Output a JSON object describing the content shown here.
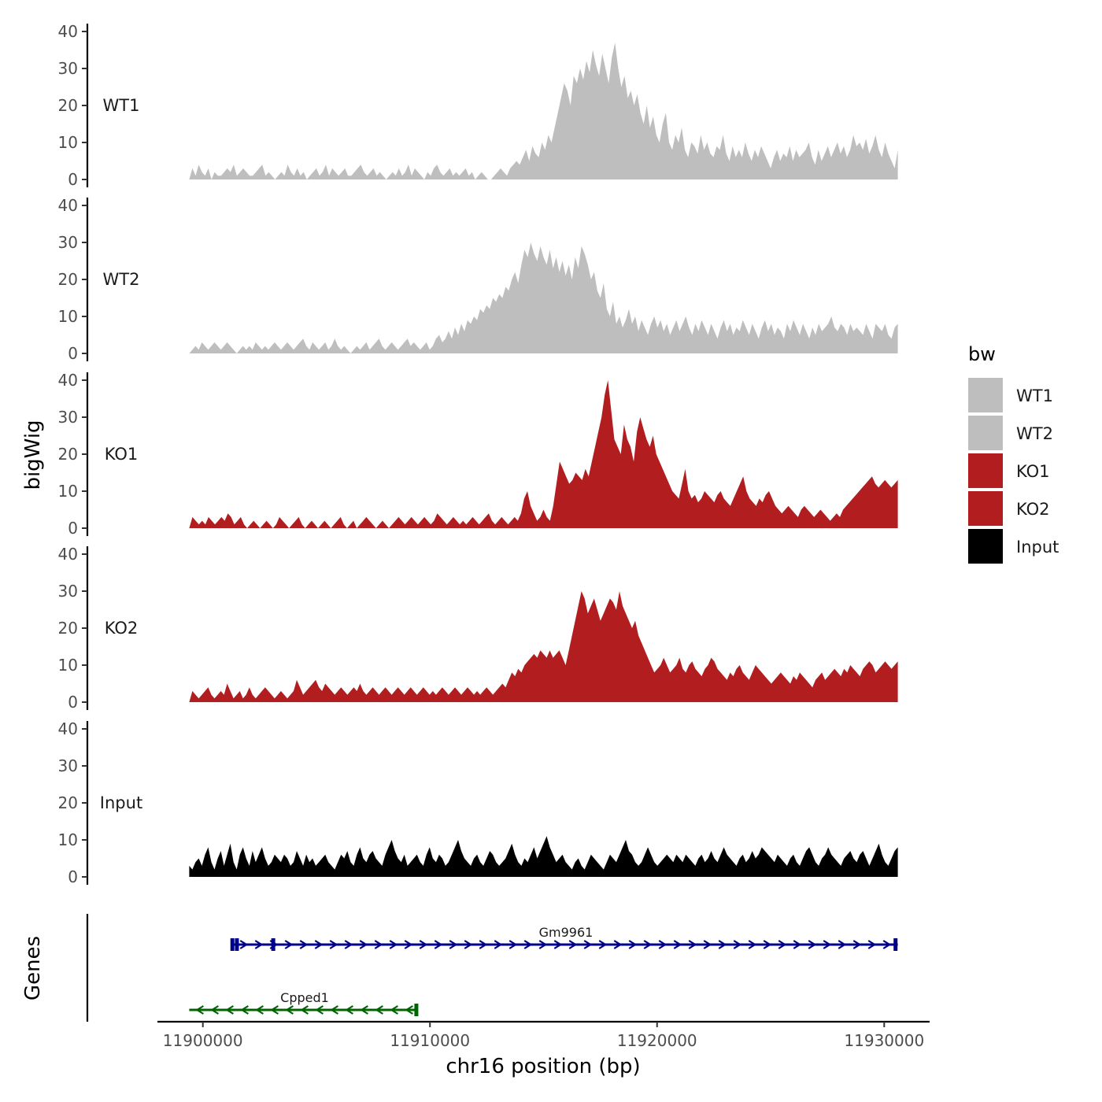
{
  "chart_data": {
    "type": "area",
    "ylabel": "bigWig",
    "xlabel": "chr16 position (bp)",
    "x_range": [
      11899400,
      11930600
    ],
    "xlim": [
      11898000,
      11932000
    ],
    "x_ticks": [
      11900000,
      11910000,
      11920000,
      11930000
    ],
    "x_tick_labels": [
      "11900000",
      "11910000",
      "11920000",
      "11930000"
    ],
    "y_range": [
      0,
      40
    ],
    "y_ticks": [
      0,
      10,
      20,
      30,
      40
    ],
    "y_tick_labels": [
      "0",
      "10",
      "20",
      "30",
      "40"
    ],
    "series": [
      {
        "name": "WT1",
        "color": "#bebebe",
        "values": [
          0,
          3,
          1,
          4,
          2,
          1,
          3,
          0,
          2,
          1,
          1,
          2,
          3,
          2,
          4,
          1,
          2,
          3,
          2,
          1,
          1,
          2,
          3,
          4,
          1,
          2,
          1,
          0,
          1,
          2,
          1,
          4,
          2,
          1,
          3,
          1,
          2,
          0,
          1,
          2,
          3,
          1,
          2,
          4,
          1,
          3,
          2,
          1,
          2,
          3,
          1,
          1,
          2,
          3,
          4,
          2,
          1,
          2,
          3,
          1,
          2,
          1,
          0,
          1,
          2,
          1,
          3,
          1,
          2,
          4,
          1,
          3,
          2,
          1,
          0,
          2,
          1,
          3,
          4,
          2,
          1,
          2,
          3,
          1,
          2,
          1,
          2,
          3,
          1,
          2,
          0,
          1,
          2,
          1,
          0,
          0,
          1,
          2,
          3,
          2,
          1,
          3,
          4,
          5,
          4,
          6,
          8,
          5,
          9,
          7,
          6,
          10,
          8,
          12,
          10,
          14,
          18,
          22,
          26,
          24,
          20,
          28,
          26,
          30,
          27,
          32,
          29,
          35,
          31,
          28,
          34,
          30,
          26,
          33,
          37,
          30,
          25,
          28,
          22,
          24,
          20,
          23,
          18,
          15,
          20,
          14,
          17,
          12,
          10,
          15,
          18,
          10,
          8,
          12,
          10,
          14,
          8,
          6,
          10,
          9,
          7,
          12,
          8,
          10,
          7,
          6,
          9,
          8,
          12,
          7,
          5,
          9,
          6,
          8,
          6,
          10,
          7,
          5,
          8,
          6,
          9,
          7,
          5,
          3,
          6,
          8,
          5,
          7,
          6,
          9,
          5,
          8,
          6,
          7,
          8,
          10,
          6,
          4,
          8,
          5,
          7,
          9,
          6,
          8,
          10,
          7,
          9,
          6,
          8,
          12,
          9,
          10,
          8,
          11,
          7,
          9,
          12,
          8,
          6,
          10,
          7,
          5,
          3,
          8
        ]
      },
      {
        "name": "WT2",
        "color": "#bebebe",
        "values": [
          0,
          1,
          2,
          1,
          3,
          2,
          1,
          2,
          3,
          2,
          1,
          2,
          3,
          2,
          1,
          0,
          1,
          2,
          1,
          2,
          1,
          3,
          2,
          1,
          2,
          1,
          2,
          3,
          2,
          1,
          2,
          3,
          2,
          1,
          2,
          3,
          4,
          2,
          1,
          3,
          2,
          1,
          2,
          3,
          1,
          2,
          4,
          2,
          1,
          2,
          1,
          0,
          1,
          2,
          1,
          2,
          3,
          1,
          2,
          3,
          4,
          2,
          1,
          2,
          3,
          2,
          1,
          2,
          3,
          4,
          2,
          3,
          2,
          1,
          2,
          3,
          1,
          2,
          4,
          5,
          3,
          4,
          6,
          4,
          7,
          5,
          8,
          6,
          9,
          8,
          10,
          9,
          12,
          11,
          13,
          12,
          15,
          14,
          16,
          15,
          18,
          17,
          20,
          22,
          19,
          24,
          28,
          26,
          30,
          27,
          25,
          29,
          26,
          24,
          28,
          23,
          26,
          22,
          25,
          21,
          24,
          20,
          26,
          23,
          29,
          27,
          24,
          20,
          22,
          17,
          15,
          19,
          12,
          10,
          14,
          8,
          10,
          7,
          9,
          12,
          8,
          10,
          6,
          9,
          7,
          5,
          8,
          10,
          7,
          9,
          6,
          8,
          5,
          7,
          9,
          6,
          8,
          10,
          7,
          5,
          8,
          6,
          9,
          7,
          5,
          8,
          6,
          4,
          7,
          9,
          6,
          8,
          5,
          7,
          6,
          9,
          7,
          5,
          8,
          6,
          4,
          7,
          9,
          6,
          8,
          5,
          7,
          6,
          4,
          8,
          6,
          9,
          7,
          5,
          8,
          6,
          4,
          7,
          5,
          8,
          6,
          7,
          8,
          10,
          7,
          6,
          8,
          7,
          5,
          8,
          6,
          7,
          6,
          5,
          8,
          6,
          4,
          8,
          7,
          6,
          8,
          5,
          4,
          7,
          8
        ]
      },
      {
        "name": "KO1",
        "color": "#b21e20",
        "values": [
          0,
          3,
          2,
          1,
          2,
          1,
          3,
          2,
          1,
          2,
          3,
          2,
          4,
          3,
          1,
          2,
          3,
          1,
          0,
          1,
          2,
          1,
          0,
          1,
          2,
          1,
          0,
          1,
          3,
          2,
          1,
          0,
          1,
          2,
          3,
          1,
          0,
          1,
          2,
          1,
          0,
          1,
          2,
          1,
          0,
          1,
          2,
          3,
          1,
          0,
          1,
          2,
          0,
          1,
          2,
          3,
          2,
          1,
          0,
          1,
          2,
          1,
          0,
          1,
          2,
          3,
          2,
          1,
          2,
          3,
          2,
          1,
          2,
          3,
          2,
          1,
          2,
          4,
          3,
          2,
          1,
          2,
          3,
          2,
          1,
          2,
          1,
          2,
          3,
          2,
          1,
          2,
          3,
          4,
          2,
          1,
          2,
          3,
          2,
          1,
          2,
          3,
          2,
          4,
          8,
          10,
          6,
          4,
          2,
          3,
          5,
          3,
          2,
          6,
          12,
          18,
          16,
          14,
          12,
          13,
          15,
          14,
          13,
          16,
          14,
          18,
          22,
          26,
          30,
          36,
          40,
          32,
          24,
          22,
          20,
          28,
          24,
          22,
          18,
          26,
          30,
          27,
          24,
          22,
          25,
          20,
          18,
          16,
          14,
          12,
          10,
          9,
          8,
          12,
          16,
          10,
          8,
          9,
          7,
          8,
          10,
          9,
          8,
          7,
          9,
          10,
          8,
          7,
          6,
          8,
          10,
          12,
          14,
          10,
          8,
          7,
          6,
          8,
          7,
          9,
          10,
          8,
          6,
          5,
          4,
          5,
          6,
          5,
          4,
          3,
          5,
          6,
          5,
          4,
          3,
          4,
          5,
          4,
          3,
          2,
          3,
          4,
          3,
          5,
          6,
          7,
          8,
          9,
          10,
          11,
          12,
          13,
          14,
          12,
          11,
          12,
          13,
          12,
          11,
          12,
          13
        ]
      },
      {
        "name": "KO2",
        "color": "#b21e20",
        "values": [
          0,
          3,
          2,
          1,
          2,
          3,
          4,
          2,
          1,
          2,
          3,
          2,
          5,
          3,
          1,
          2,
          3,
          1,
          2,
          4,
          2,
          1,
          2,
          3,
          4,
          3,
          2,
          1,
          2,
          3,
          2,
          1,
          2,
          3,
          6,
          4,
          2,
          3,
          4,
          5,
          6,
          4,
          3,
          5,
          4,
          3,
          2,
          3,
          4,
          3,
          2,
          3,
          4,
          3,
          5,
          3,
          2,
          3,
          4,
          3,
          2,
          3,
          4,
          3,
          2,
          3,
          4,
          3,
          2,
          3,
          4,
          3,
          2,
          3,
          4,
          3,
          2,
          3,
          2,
          3,
          4,
          3,
          2,
          3,
          4,
          3,
          2,
          3,
          4,
          3,
          2,
          3,
          2,
          3,
          4,
          3,
          2,
          3,
          4,
          5,
          4,
          6,
          8,
          7,
          9,
          8,
          10,
          11,
          12,
          13,
          12,
          14,
          13,
          12,
          14,
          12,
          13,
          14,
          12,
          10,
          14,
          18,
          22,
          26,
          30,
          28,
          24,
          26,
          28,
          25,
          22,
          24,
          26,
          28,
          27,
          25,
          30,
          26,
          24,
          22,
          20,
          22,
          18,
          16,
          14,
          12,
          10,
          8,
          9,
          10,
          12,
          10,
          8,
          9,
          10,
          12,
          9,
          8,
          10,
          11,
          9,
          8,
          7,
          9,
          10,
          12,
          11,
          9,
          8,
          7,
          6,
          8,
          7,
          9,
          10,
          8,
          7,
          6,
          8,
          10,
          9,
          8,
          7,
          6,
          5,
          6,
          7,
          8,
          7,
          6,
          5,
          7,
          6,
          8,
          7,
          6,
          5,
          4,
          6,
          7,
          8,
          6,
          7,
          8,
          9,
          8,
          7,
          9,
          8,
          10,
          9,
          8,
          7,
          9,
          10,
          11,
          10,
          8,
          9,
          10,
          11,
          10,
          9,
          10,
          11
        ]
      },
      {
        "name": "Input",
        "color": "#000000",
        "values": [
          3,
          2,
          4,
          5,
          3,
          6,
          8,
          4,
          2,
          5,
          7,
          3,
          6,
          9,
          4,
          2,
          6,
          8,
          5,
          3,
          7,
          4,
          6,
          8,
          5,
          3,
          4,
          6,
          5,
          4,
          6,
          5,
          3,
          4,
          7,
          5,
          3,
          6,
          4,
          5,
          3,
          4,
          5,
          6,
          4,
          3,
          2,
          4,
          6,
          5,
          7,
          4,
          3,
          6,
          8,
          5,
          4,
          6,
          7,
          5,
          4,
          3,
          6,
          8,
          10,
          7,
          5,
          4,
          6,
          3,
          4,
          5,
          6,
          4,
          3,
          6,
          8,
          5,
          4,
          6,
          5,
          3,
          4,
          6,
          8,
          10,
          7,
          5,
          4,
          3,
          5,
          6,
          4,
          3,
          5,
          7,
          6,
          4,
          3,
          4,
          5,
          7,
          9,
          6,
          4,
          3,
          5,
          4,
          6,
          8,
          5,
          7,
          9,
          11,
          8,
          6,
          4,
          5,
          6,
          4,
          3,
          2,
          4,
          5,
          3,
          2,
          4,
          6,
          5,
          4,
          3,
          2,
          4,
          6,
          5,
          4,
          6,
          8,
          10,
          7,
          6,
          4,
          3,
          4,
          6,
          8,
          6,
          4,
          3,
          4,
          5,
          6,
          5,
          4,
          6,
          5,
          4,
          6,
          5,
          4,
          3,
          5,
          6,
          4,
          5,
          7,
          5,
          4,
          6,
          8,
          6,
          5,
          4,
          3,
          5,
          6,
          4,
          5,
          7,
          5,
          6,
          8,
          7,
          6,
          5,
          4,
          6,
          5,
          4,
          3,
          5,
          6,
          4,
          3,
          5,
          7,
          8,
          6,
          4,
          3,
          5,
          6,
          8,
          6,
          5,
          4,
          3,
          5,
          6,
          7,
          5,
          4,
          6,
          7,
          5,
          3,
          5,
          7,
          9,
          6,
          4,
          3,
          5,
          7,
          8
        ]
      }
    ],
    "genes": {
      "label": "Genes",
      "items": [
        {
          "name": "Gm9961",
          "start": 11901300,
          "end": 11930600,
          "strand": "+",
          "color": "#00008b",
          "exons": [
            11901300,
            11901500,
            11903100,
            11930500
          ]
        },
        {
          "name": "Cpped1",
          "start": 11899400,
          "end": 11909400,
          "strand": "-",
          "color": "#006400",
          "exons": [
            11909400
          ]
        }
      ]
    },
    "legend": {
      "title": "bw",
      "position": "right",
      "entries": [
        {
          "label": "WT1",
          "color": "#bebebe"
        },
        {
          "label": "WT2",
          "color": "#bebebe"
        },
        {
          "label": "KO1",
          "color": "#b21e20"
        },
        {
          "label": "KO2",
          "color": "#b21e20"
        },
        {
          "label": "Input",
          "color": "#000000"
        }
      ]
    }
  }
}
